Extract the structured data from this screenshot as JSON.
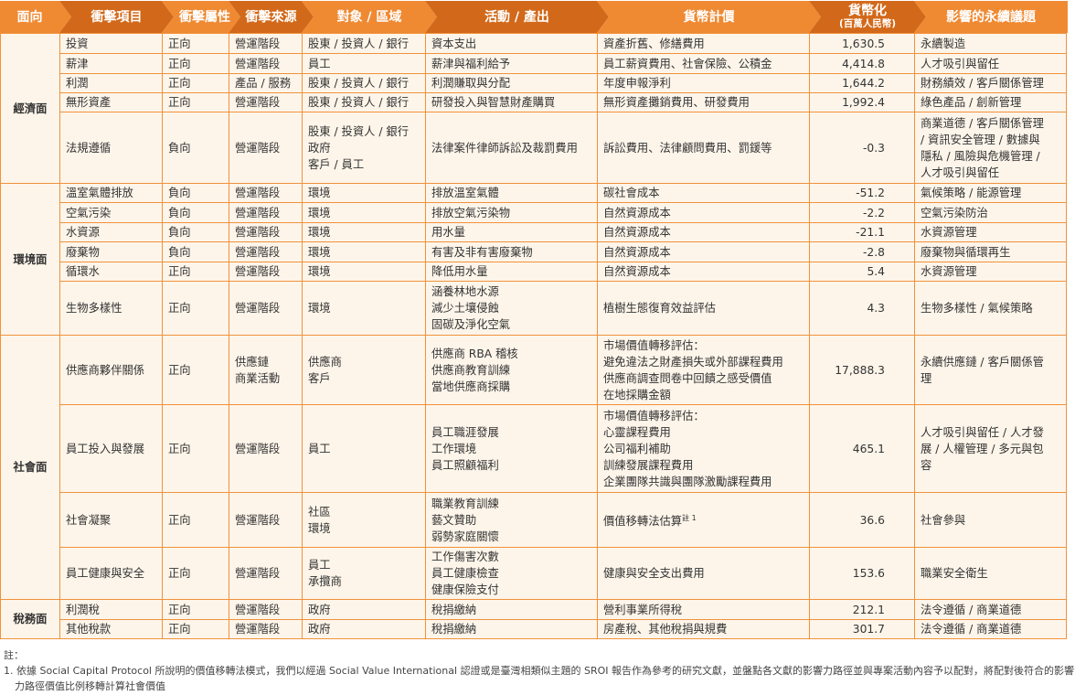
{
  "header": {
    "dimension": "面向",
    "impact_item": "衝擊項目",
    "attribute": "衝擊屬性",
    "source": "衝擊來源",
    "target": "對象 / 區域",
    "activity": "活動 / 產出",
    "valuation": "貨幣計價",
    "monetized": "貨幣化",
    "monetized_unit": "(百萬人民幣)",
    "issue": "影響的永續議題"
  },
  "colors": {
    "header_light": "#ef8a33",
    "header_dark": "#d2691a",
    "border": "#f0923c",
    "row_bg": "#fdf5ea"
  },
  "groups": [
    {
      "category": "經濟面",
      "rows": [
        {
          "item": "投資",
          "attribute": "正向",
          "source": "營運階段",
          "target": "股東 / 投資人 / 銀行",
          "activity": "資本支出",
          "valuation": "資產折舊、修繕費用",
          "value": "1,630.5",
          "issue": "永續製造"
        },
        {
          "item": "薪津",
          "attribute": "正向",
          "source": "營運階段",
          "target": "員工",
          "activity": "薪津與福利給予",
          "valuation": "員工薪資費用、社會保險、公積金",
          "value": "4,414.8",
          "issue": "人才吸引與留任"
        },
        {
          "item": "利潤",
          "attribute": "正向",
          "source": "產品 / 服務",
          "target": "股東 / 投資人 / 銀行",
          "activity": "利潤賺取與分配",
          "valuation": "年度申報淨利",
          "value": "1,644.2",
          "issue": "財務績效 / 客戶關係管理"
        },
        {
          "item": "無形資產",
          "attribute": "正向",
          "source": "營運階段",
          "target": "股東 / 投資人 / 銀行",
          "activity": "研發投入與智慧財產購買",
          "valuation": "無形資產攤銷費用、研發費用",
          "value": "1,992.4",
          "issue": "綠色產品 / 創新管理"
        },
        {
          "item": "法規遵循",
          "attribute": "負向",
          "source": "營運階段",
          "target": "股東 / 投資人 / 銀行\n政府\n客戶 / 員工",
          "activity": "法律案件律師訴訟及裁罰費用",
          "valuation": "訴訟費用、法律顧問費用、罰鍰等",
          "value": "-0.3",
          "issue": "商業道德 / 客戶關係管理\n/ 資訊安全管理 / 數據與\n隱私 / 風險與危機管理 /\n人才吸引與留任"
        }
      ]
    },
    {
      "category": "環境面",
      "rows": [
        {
          "item": "溫室氣體排放",
          "attribute": "負向",
          "source": "營運階段",
          "target": "環境",
          "activity": "排放溫室氣體",
          "valuation": "碳社會成本",
          "value": "-51.2",
          "issue": "氣候策略 / 能源管理"
        },
        {
          "item": "空氣污染",
          "attribute": "負向",
          "source": "營運階段",
          "target": "環境",
          "activity": "排放空氣污染物",
          "valuation": "自然資源成本",
          "value": "-2.2",
          "issue": "空氣污染防治"
        },
        {
          "item": "水資源",
          "attribute": "負向",
          "source": "營運階段",
          "target": "環境",
          "activity": "用水量",
          "valuation": "自然資源成本",
          "value": "-21.1",
          "issue": "水資源管理"
        },
        {
          "item": "廢棄物",
          "attribute": "負向",
          "source": "營運階段",
          "target": "環境",
          "activity": "有害及非有害廢棄物",
          "valuation": "自然資源成本",
          "value": "-2.8",
          "issue": "廢棄物與循環再生"
        },
        {
          "item": "循環水",
          "attribute": "正向",
          "source": "營運階段",
          "target": "環境",
          "activity": "降低用水量",
          "valuation": "自然資源成本",
          "value": "5.4",
          "issue": "水資源管理"
        },
        {
          "item": "生物多樣性",
          "attribute": "正向",
          "source": "營運階段",
          "target": "環境",
          "activity": "涵養林地水源\n減少土壤侵蝕\n固碳及淨化空氣",
          "valuation": "植樹生態復育效益評估",
          "value": "4.3",
          "issue": "生物多樣性 / 氣候策略"
        }
      ]
    },
    {
      "category": "社會面",
      "rows": [
        {
          "item": "供應商夥伴關係",
          "attribute": "正向",
          "source": "供應鏈\n商業活動",
          "target": "供應商\n客戶",
          "activity": "供應商 RBA 稽核\n供應商教育訓練\n當地供應商採購",
          "valuation": "市場價值轉移評估：\n避免違法之財產損失或外部課程費用\n供應商調查問卷中回饋之感受價值\n在地採購金額",
          "value": "17,888.3",
          "issue": "永續供應鏈 / 客戶關係管\n理"
        },
        {
          "item": "員工投入與發展",
          "attribute": "正向",
          "source": "營運階段",
          "target": "員工",
          "activity": "員工職涯發展\n工作環境\n員工照顧福利",
          "valuation": "市場價值轉移評估：\n心靈課程費用\n公司福利補助\n訓練發展課程費用\n企業團隊共識與團隊激勵課程費用",
          "value": "465.1",
          "issue": "人才吸引與留任 / 人才發\n展 / 人權管理 / 多元與包\n容"
        },
        {
          "item": "社會凝聚",
          "attribute": "正向",
          "source": "營運階段",
          "target": "社區\n環境",
          "activity": "職業教育訓練\n藝文贊助\n弱勢家庭關懷",
          "valuation": "價值移轉法估算",
          "valuation_sup": "註 1",
          "value": "36.6",
          "issue": "社會參與"
        },
        {
          "item": "員工健康與安全",
          "attribute": "正向",
          "source": "營運階段",
          "target": "員工\n承攬商",
          "activity": "工作傷害次數\n員工健康檢查\n健康保險支付",
          "valuation": "健康與安全支出費用",
          "value": "153.6",
          "issue": "職業安全衛生"
        }
      ]
    },
    {
      "category": "稅務面",
      "rows": [
        {
          "item": "利潤稅",
          "attribute": "正向",
          "source": "營運階段",
          "target": "政府",
          "activity": "稅捐繳納",
          "valuation": "營利事業所得稅",
          "value": "212.1",
          "issue": "法令遵循 / 商業道德"
        },
        {
          "item": "其他稅款",
          "attribute": "正向",
          "source": "營運階段",
          "target": "政府",
          "activity": "稅捐繳納",
          "valuation": "房產稅、其他稅捐與規費",
          "value": "301.7",
          "issue": "法令遵循 / 商業道德"
        }
      ]
    }
  ],
  "notes": {
    "title": "註：",
    "items": [
      "1. 依據 Social Capital Protocol 所說明的價值移轉法模式，我們以經過 Social Value International 認證或是臺灣相類似主題的 SROI 報告作為參考的研究文獻，並盤點各文獻的影響力路徑並與專案活動內容予以配對，將配對後符合的影響力路徑價值比例移轉計算社會價值"
    ]
  }
}
